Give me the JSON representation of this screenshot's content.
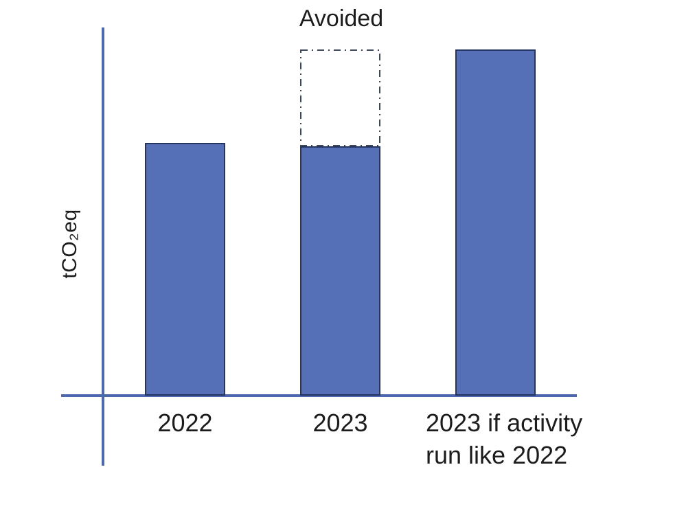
{
  "chart_data": {
    "type": "bar",
    "title": "",
    "xlabel": "",
    "ylabel": "tCO₂eq",
    "categories": [
      "2022",
      "2023",
      "2023 if activity\nrun like 2022"
    ],
    "values": [
      0.73,
      0.72,
      1.0
    ],
    "value_scale": "relative — y axis has no numeric ticks or gridlines",
    "annotations": [
      {
        "label": "Avoided",
        "target_category": "2023",
        "from": 0.72,
        "to": 1.0,
        "style": "dash-dot outline box stacked on top of 2023 bar, reaching same height as third bar"
      }
    ],
    "axis_ranges": {
      "x": "categorical",
      "y": "unlabeled"
    },
    "grid": false,
    "legend": false,
    "colors": {
      "bar_fill": "#5670B8",
      "bar_border": "#24355F",
      "axis": "#4D69AE",
      "dashed_box": "#3E4A5C",
      "text": "#1C1C1C"
    }
  }
}
